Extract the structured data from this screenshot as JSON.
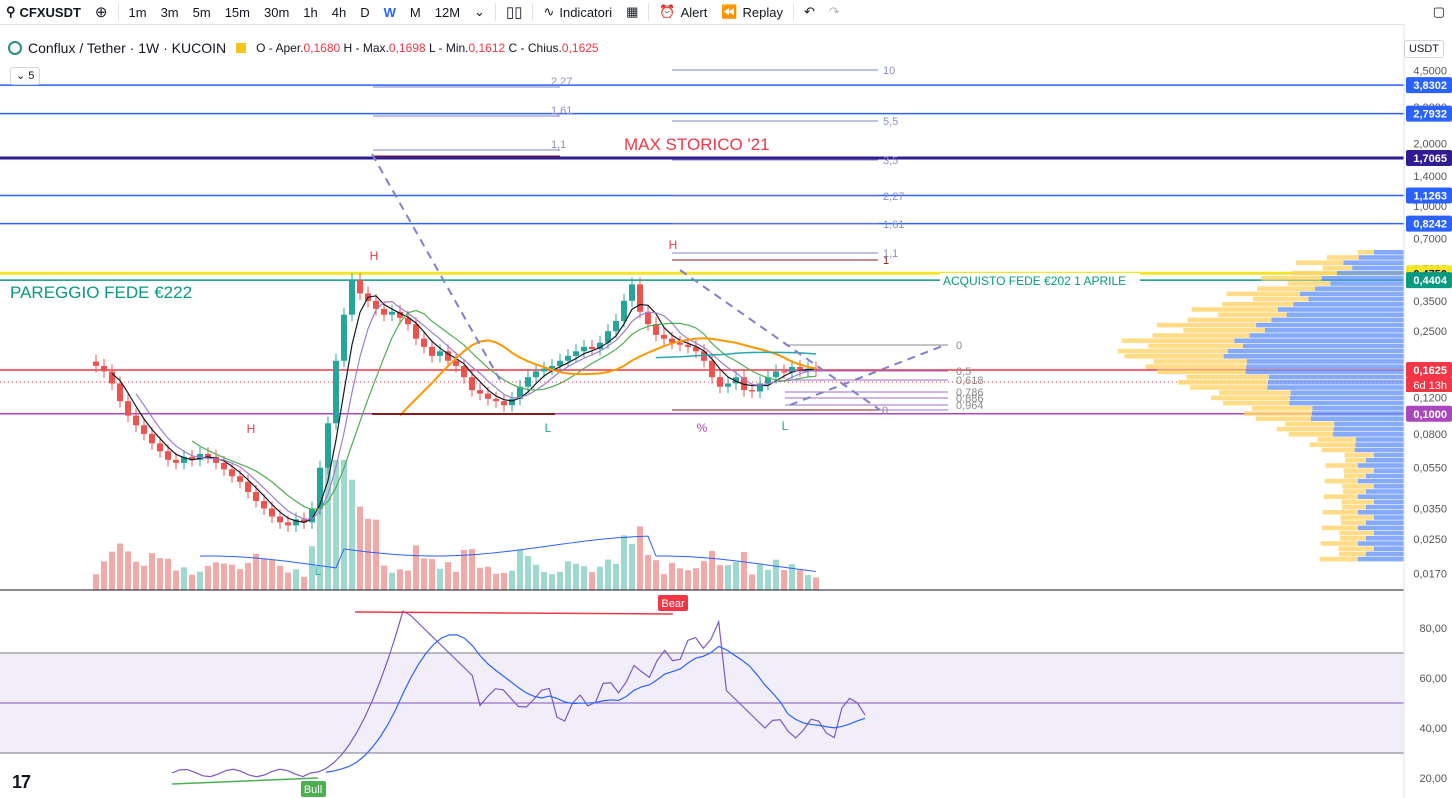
{
  "toolbar": {
    "symbol": "CFXUSDT",
    "intervals": [
      "1m",
      "3m",
      "5m",
      "15m",
      "30m",
      "1h",
      "4h",
      "D",
      "W",
      "M",
      "12M"
    ],
    "active_interval": "W",
    "indicators_label": "Indicatori",
    "alert_label": "Alert",
    "replay_label": "Replay"
  },
  "legend": {
    "title": "Conflux / Tether · 1W · KUCOIN",
    "open_label": "O - Aper.",
    "open": "0,1680",
    "high_label": "H - Max.",
    "high": "0,1698",
    "low_label": "L - Min.",
    "low": "0,1612",
    "close_label": "C - Chius.",
    "close": "0,1625",
    "count": "5",
    "currency": "USDT"
  },
  "colors": {
    "up": "#26a69a",
    "down": "#ef5350",
    "blue_line": "#2962ff",
    "yellow_line": "#f5e52a",
    "purple_line": "#ab47bc",
    "red_line": "#f23645",
    "navy_line": "#311b92",
    "teal_line": "#089981"
  },
  "chart_data": {
    "type": "candlestick",
    "scale": "log",
    "price_axis": [
      "4,5000",
      "3,0000",
      "2,0000",
      "1,4000",
      "1,0000",
      "0,7000",
      "0,5000",
      "0,3500",
      "0,2500",
      "0,1200",
      "0,0800",
      "0,0550",
      "0,0350",
      "0,0250",
      "0,0170"
    ],
    "price_levels": [
      {
        "price": 3.8302,
        "label": "3,8302",
        "color": "#2962ff"
      },
      {
        "price": 2.7932,
        "label": "2,7932",
        "color": "#2962ff"
      },
      {
        "price": 1.7065,
        "label": "1,7065",
        "color": "#311b92"
      },
      {
        "price": 1.1263,
        "label": "1,1263",
        "color": "#2962ff"
      },
      {
        "price": 0.8242,
        "label": "0,8242",
        "color": "#2962ff"
      },
      {
        "price": 0.475,
        "label": "0,4750",
        "color": "#f5e52a"
      },
      {
        "price": 0.4404,
        "label": "0,4404",
        "color": "#089981"
      },
      {
        "price": 0.1625,
        "label": "0,1625",
        "sublabel": "6d 13h",
        "color": "#f23645"
      },
      {
        "price": 0.1,
        "label": "0,1000",
        "color": "#ab47bc"
      }
    ],
    "annotations": [
      {
        "text": "MAX STORICO '21",
        "color": "#f23645"
      },
      {
        "text": "PAREGGIO FEDE €222",
        "color": "#089981"
      },
      {
        "text": "ACQUISTO FEDE €202 1 APRILE",
        "color": "#089981"
      }
    ],
    "markers": [
      "H",
      "H",
      "H",
      "L",
      "L",
      "L",
      "%"
    ],
    "fib_left": [
      "2,27",
      "1,61",
      "1,1"
    ],
    "fib_right": [
      "10",
      "5,5",
      "3,5",
      "2,27",
      "1,61",
      "1,1",
      "1"
    ],
    "fib_retracement": [
      "0",
      "0,5",
      "0,618",
      "0,786",
      "0,886",
      "0,964",
      "0"
    ],
    "closes": [
      0.17,
      0.16,
      0.14,
      0.115,
      0.098,
      0.088,
      0.08,
      0.072,
      0.066,
      0.06,
      0.058,
      0.062,
      0.06,
      0.064,
      0.062,
      0.058,
      0.054,
      0.05,
      0.047,
      0.042,
      0.038,
      0.035,
      0.032,
      0.03,
      0.029,
      0.031,
      0.03,
      0.035,
      0.055,
      0.09,
      0.18,
      0.3,
      0.44,
      0.38,
      0.35,
      0.32,
      0.3,
      0.31,
      0.29,
      0.27,
      0.23,
      0.21,
      0.19,
      0.2,
      0.18,
      0.17,
      0.15,
      0.13,
      0.125,
      0.118,
      0.115,
      0.11,
      0.118,
      0.135,
      0.15,
      0.16,
      0.165,
      0.17,
      0.18,
      0.19,
      0.2,
      0.21,
      0.205,
      0.22,
      0.25,
      0.28,
      0.35,
      0.42,
      0.31,
      0.27,
      0.24,
      0.23,
      0.22,
      0.215,
      0.21,
      0.2,
      0.18,
      0.15,
      0.135,
      0.14,
      0.15,
      0.13,
      0.128,
      0.14,
      0.15,
      0.16,
      0.158,
      0.168,
      0.162,
      0.165,
      0.1625
    ],
    "oscillator": {
      "axis": [
        "80,00",
        "60,00",
        "40,00",
        "20,00"
      ],
      "upper_band": 70,
      "mid": 50,
      "lower_band": 30,
      "labels": [
        "Bear",
        "Bull"
      ]
    }
  }
}
